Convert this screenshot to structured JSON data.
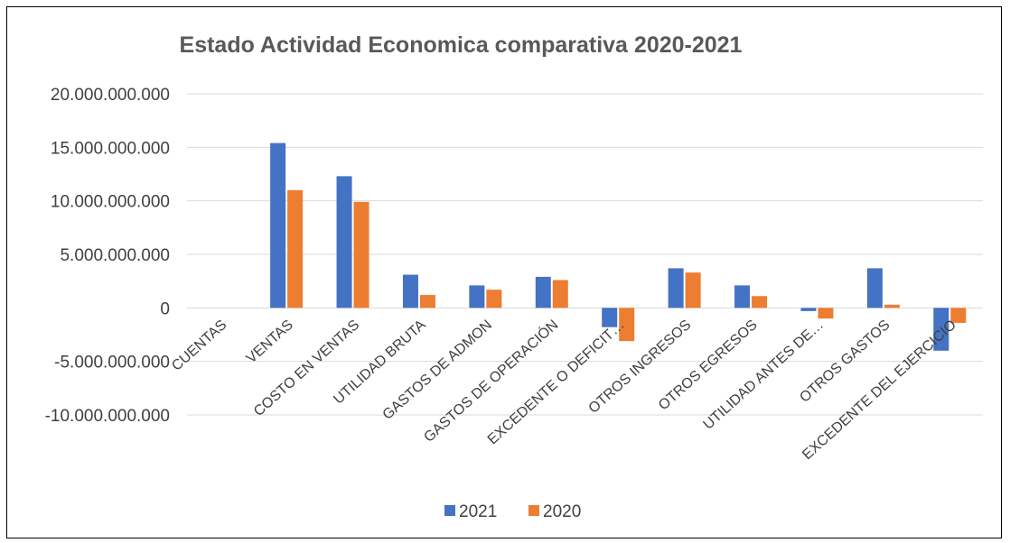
{
  "chart_data": {
    "type": "bar",
    "title": "Estado Actividad Economica comparativa 2020-2021",
    "xlabel": "",
    "ylabel": "",
    "ylim": [
      -10000000000,
      20000000000
    ],
    "yticks": [
      20000000000,
      15000000000,
      10000000000,
      5000000000,
      0,
      -5000000000,
      -10000000000
    ],
    "ytick_labels": [
      "20.000.000.000",
      "15.000.000.000",
      "10.000.000.000",
      "5.000.000.000",
      "0",
      "-5.000.000.000",
      "-10.000.000.000"
    ],
    "categories": [
      "CUENTAS",
      "VENTAS",
      "COSTO EN VENTAS",
      "UTILIDAD BRUTA",
      "GASTOS DE ADMON",
      "GASTOS DE OPERACIÓN",
      "EXCEDENTE O DEFICIT…",
      "OTROS INGRESOS",
      "OTROS EGRESOS",
      "UTILIDAD ANTES DE…",
      "OTROS GASTOS",
      "EXCEDENTE DEL EJERCICIO"
    ],
    "series": [
      {
        "name": "2021",
        "color": "#4472C4",
        "values": [
          0,
          15400000000,
          12300000000,
          3100000000,
          2100000000,
          2900000000,
          -1800000000,
          3700000000,
          2100000000,
          -300000000,
          3700000000,
          -4000000000
        ]
      },
      {
        "name": "2020",
        "color": "#ED7D31",
        "values": [
          0,
          11000000000,
          9900000000,
          1200000000,
          1700000000,
          2600000000,
          -3100000000,
          3300000000,
          1100000000,
          -1000000000,
          300000000,
          -1400000000
        ]
      }
    ],
    "grid": true,
    "legend": "bottom"
  }
}
